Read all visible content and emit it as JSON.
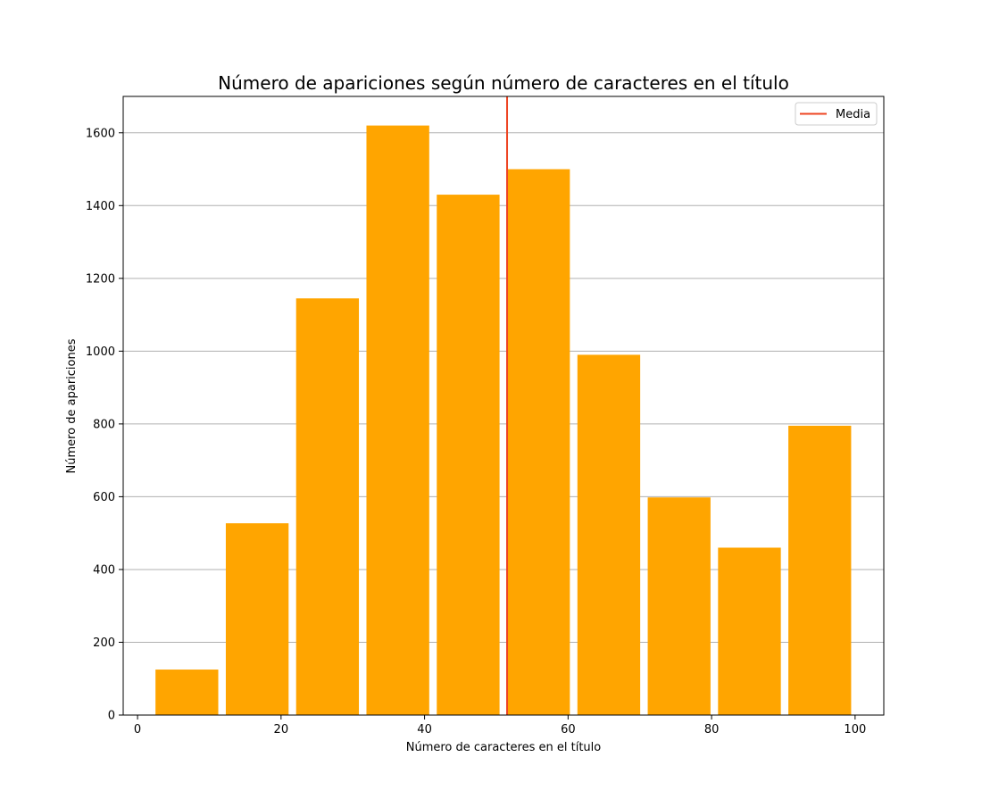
{
  "chart_data": {
    "type": "bar",
    "title": "Número de apariciones según número de caracteres en el título",
    "xlabel": "Número de caracteres en el título",
    "ylabel": "Número de apariciones",
    "xlim": [
      -2,
      104
    ],
    "ylim": [
      0,
      1700
    ],
    "xticks": [
      0,
      20,
      40,
      60,
      80,
      100
    ],
    "yticks": [
      0,
      200,
      400,
      600,
      800,
      1000,
      1200,
      1400,
      1600
    ],
    "grid": {
      "y": true,
      "x": false
    },
    "bars": [
      {
        "x_start": 2.5,
        "x_end": 11.25,
        "value": 125
      },
      {
        "x_start": 12.3,
        "x_end": 21.05,
        "value": 527
      },
      {
        "x_start": 22.1,
        "x_end": 30.85,
        "value": 1145
      },
      {
        "x_start": 31.9,
        "x_end": 40.65,
        "value": 1620
      },
      {
        "x_start": 41.7,
        "x_end": 50.45,
        "value": 1430
      },
      {
        "x_start": 51.5,
        "x_end": 60.25,
        "value": 1500
      },
      {
        "x_start": 61.3,
        "x_end": 70.05,
        "value": 990
      },
      {
        "x_start": 71.1,
        "x_end": 79.85,
        "value": 598
      },
      {
        "x_start": 80.9,
        "x_end": 89.65,
        "value": 460
      },
      {
        "x_start": 90.7,
        "x_end": 99.45,
        "value": 795
      }
    ],
    "bar_color": "#FFA500",
    "mean_line": {
      "x": 51.5,
      "color": "#EE4422",
      "label": "Media"
    },
    "legend": {
      "position": "top-right",
      "entries": [
        "Media"
      ]
    }
  }
}
